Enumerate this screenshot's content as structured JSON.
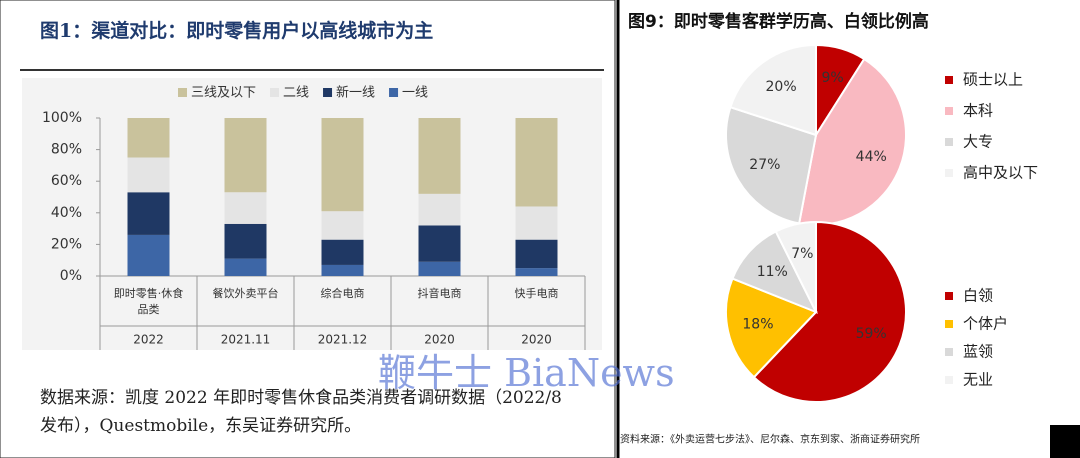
{
  "chart_data": [
    {
      "type": "bar",
      "stacked": true,
      "title": "图1：渠道对比：即时零售用户以高线城市为主",
      "categories": [
        "即时零售·休食品类",
        "餐饮外卖平台",
        "综合电商",
        "抖音电商",
        "快手电商"
      ],
      "years": [
        "2022",
        "2021.11",
        "2021.12",
        "2020",
        "2020"
      ],
      "series": [
        {
          "name": "一线",
          "color": "#3d66a6",
          "values": [
            26,
            11,
            7,
            9,
            5
          ]
        },
        {
          "name": "新一线",
          "color": "#1f3864",
          "values": [
            27,
            22,
            16,
            23,
            18
          ]
        },
        {
          "name": "二线",
          "color": "#e4e4e4",
          "values": [
            22,
            20,
            18,
            20,
            21
          ]
        },
        {
          "name": "三线及以下",
          "color": "#c9c29c",
          "values": [
            25,
            47,
            59,
            48,
            56
          ]
        }
      ],
      "ylim": [
        0,
        100
      ],
      "yticks": [
        {
          "value": 0,
          "label": "0%"
        },
        {
          "value": 20,
          "label": "20%"
        },
        {
          "value": 40,
          "label": "40%"
        },
        {
          "value": 60,
          "label": "60%"
        },
        {
          "value": 80,
          "label": "80%"
        },
        {
          "value": 100,
          "label": "100%"
        }
      ],
      "source": "数据来源：凯度 2022 年即时零售休食品类消费者调研数据（2022/8 发布），Questmobile，东吴证券研究所。"
    },
    {
      "type": "pie",
      "title": "图9：即时零售客群学历高、白领比例高",
      "categories": [
        "硕士以上",
        "本科",
        "大专",
        "高中及以下"
      ],
      "values": [
        9,
        44,
        27,
        20
      ],
      "value_labels": [
        "9%",
        "44%",
        "27%",
        "20%"
      ],
      "colors": [
        "#c00000",
        "#f9b9c1",
        "#d9d9d9",
        "#f2f2f2"
      ]
    },
    {
      "type": "pie",
      "categories": [
        "白领",
        "个体户",
        "蓝领",
        "无业"
      ],
      "values": [
        59,
        18,
        11,
        7
      ],
      "value_labels": [
        "59%",
        "18%",
        "11%",
        "7%"
      ],
      "colors": [
        "#c00000",
        "#ffc000",
        "#d9d9d9",
        "#f2f2f2"
      ],
      "source": "资料来源：《外卖运营七步法》、尼尔森、京东到家、浙商证券研究所"
    }
  ],
  "watermark": "鞭牛士 BiaNews"
}
